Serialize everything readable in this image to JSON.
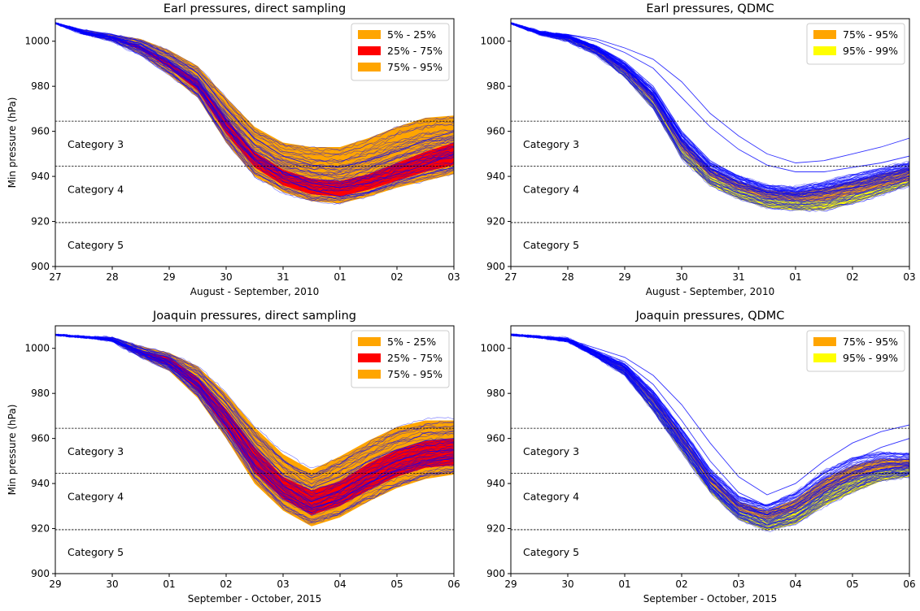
{
  "colors": {
    "sample_line": "#0000ff",
    "band_5_25": "#ffa500",
    "band_25_75": "#ff0000",
    "band_75_95": "#ffa500",
    "band_95_99": "#ffff00",
    "threshold": "#000000"
  },
  "chart_data": [
    {
      "type": "area",
      "title": "Earl pressures, direct sampling",
      "xlabel": "August - September, 2010",
      "ylabel": "Min pressure (hPa)",
      "xlim": [
        0,
        7
      ],
      "ylim": [
        900,
        1010
      ],
      "x_tick_labels": [
        "27",
        "28",
        "29",
        "30",
        "31",
        "01",
        "02",
        "03"
      ],
      "y_ticks": [
        900,
        920,
        940,
        960,
        980,
        1000
      ],
      "grid": false,
      "legend_position": "top-right",
      "legend": [
        {
          "label": "5% - 25%",
          "color": "#ffa500"
        },
        {
          "label": "25% - 75%",
          "color": "#ff0000"
        },
        {
          "label": "75% - 95%",
          "color": "#ffa500"
        }
      ],
      "thresholds": [
        {
          "value": 964.5,
          "label": "Category 3"
        },
        {
          "value": 944.5,
          "label": "Category 4"
        },
        {
          "value": 919.5,
          "label": "Category 5"
        }
      ],
      "x": [
        0,
        0.5,
        1,
        1.5,
        2,
        2.5,
        3,
        3.5,
        4,
        4.5,
        5,
        5.5,
        6,
        6.5,
        7
      ],
      "series": [
        {
          "values": [
            1008,
            1004,
            1002,
            999,
            991,
            982,
            965,
            950,
            942,
            937,
            935,
            937,
            941,
            945,
            950
          ]
        },
        {
          "values": [
            1008,
            1004,
            1002,
            997,
            989,
            980,
            962,
            947,
            939,
            934,
            931,
            933,
            937,
            941,
            944
          ]
        },
        {
          "values": [
            1008,
            1005,
            1003,
            1000,
            994,
            986,
            970,
            957,
            949,
            945,
            944,
            947,
            951,
            956,
            960
          ]
        }
      ],
      "bands": [
        {
          "name": "5% - 25%",
          "lower": [
            1008,
            1003,
            1000,
            994,
            985,
            975,
            955,
            940,
            933,
            929,
            928,
            931,
            935,
            938,
            941
          ],
          "upper": [
            1008,
            1004,
            1001,
            996,
            988,
            978,
            959,
            944,
            936,
            932,
            931,
            934,
            938,
            942,
            945
          ]
        },
        {
          "name": "25% - 75%",
          "lower": [
            1008,
            1004,
            1001,
            996,
            988,
            978,
            959,
            944,
            936,
            932,
            931,
            934,
            938,
            942,
            945
          ],
          "upper": [
            1008,
            1004,
            1002,
            998,
            991,
            983,
            966,
            951,
            943,
            939,
            938,
            941,
            946,
            951,
            955
          ]
        },
        {
          "name": "75% - 95%",
          "lower": [
            1008,
            1004,
            1002,
            998,
            991,
            983,
            966,
            951,
            943,
            939,
            938,
            941,
            946,
            951,
            955
          ],
          "upper": [
            1008,
            1005,
            1003,
            1001,
            996,
            989,
            975,
            962,
            955,
            953,
            953,
            957,
            962,
            966,
            967
          ]
        }
      ]
    },
    {
      "type": "area",
      "title": "Earl pressures, QDMC",
      "xlabel": "August - September, 2010",
      "ylabel": "",
      "xlim": [
        0,
        7
      ],
      "ylim": [
        900,
        1010
      ],
      "x_tick_labels": [
        "27",
        "28",
        "29",
        "30",
        "31",
        "01",
        "02",
        "03"
      ],
      "y_ticks": [
        900,
        920,
        940,
        960,
        980,
        1000
      ],
      "grid": false,
      "legend_position": "top-right",
      "legend": [
        {
          "label": "75% - 95%",
          "color": "#ffa500"
        },
        {
          "label": "95% - 99%",
          "color": "#ffff00"
        }
      ],
      "thresholds": [
        {
          "value": 964.5,
          "label": "Category 3"
        },
        {
          "value": 944.5,
          "label": "Category 4"
        },
        {
          "value": 919.5,
          "label": "Category 5"
        }
      ],
      "x": [
        0,
        0.5,
        1,
        1.5,
        2,
        2.5,
        3,
        3.5,
        4,
        4.5,
        5,
        5.5,
        6,
        6.5,
        7
      ],
      "series": [
        {
          "values": [
            1008,
            1004,
            1003,
            1000,
            995,
            988,
            975,
            962,
            952,
            945,
            942,
            942,
            944,
            946,
            949
          ]
        },
        {
          "values": [
            1008,
            1004,
            1003,
            1001,
            997,
            992,
            982,
            968,
            958,
            950,
            946,
            947,
            950,
            953,
            957
          ]
        },
        {
          "values": [
            1008,
            1004,
            1002,
            998,
            991,
            980,
            960,
            947,
            940,
            935,
            932,
            933,
            935,
            937,
            940
          ]
        }
      ],
      "bands": [
        {
          "name": "95% - 99%",
          "lower": [
            1008,
            1003,
            1000,
            994,
            984,
            970,
            948,
            936,
            930,
            926,
            925,
            925,
            928,
            932,
            936
          ],
          "upper": [
            1008,
            1003,
            1001,
            995,
            986,
            973,
            952,
            940,
            934,
            930,
            929,
            929,
            932,
            935,
            938
          ]
        },
        {
          "name": "75% - 95%",
          "lower": [
            1008,
            1003,
            1001,
            995,
            986,
            973,
            952,
            940,
            934,
            930,
            929,
            929,
            932,
            935,
            938
          ],
          "upper": [
            1008,
            1004,
            1002,
            997,
            989,
            977,
            957,
            944,
            938,
            934,
            933,
            935,
            938,
            941,
            944
          ]
        }
      ]
    },
    {
      "type": "area",
      "title": "Joaquin pressures, direct sampling",
      "xlabel": "September - October, 2015",
      "ylabel": "Min pressure (hPa)",
      "xlim": [
        0,
        7
      ],
      "ylim": [
        900,
        1010
      ],
      "x_tick_labels": [
        "29",
        "30",
        "01",
        "02",
        "03",
        "04",
        "05",
        "06"
      ],
      "y_ticks": [
        900,
        920,
        940,
        960,
        980,
        1000
      ],
      "grid": false,
      "legend_position": "top-right",
      "legend": [
        {
          "label": "5% - 25%",
          "color": "#ffa500"
        },
        {
          "label": "25% - 75%",
          "color": "#ff0000"
        },
        {
          "label": "75% - 95%",
          "color": "#ffa500"
        }
      ],
      "thresholds": [
        {
          "value": 964.5,
          "label": "Category 3"
        },
        {
          "value": 944.5,
          "label": "Category 4"
        },
        {
          "value": 919.5,
          "label": "Category 5"
        }
      ],
      "x": [
        0,
        0.5,
        1,
        1.5,
        2,
        2.5,
        3,
        3.5,
        4,
        4.5,
        5,
        5.5,
        6,
        6.5,
        7
      ],
      "series": [
        {
          "values": [
            1006,
            1005,
            1004,
            998,
            994,
            984,
            970,
            952,
            939,
            932,
            937,
            944,
            950,
            954,
            955
          ]
        },
        {
          "values": [
            1006,
            1005,
            1004,
            997,
            992,
            982,
            966,
            948,
            936,
            929,
            933,
            940,
            946,
            950,
            951
          ]
        },
        {
          "values": [
            1006,
            1005,
            1004,
            999,
            996,
            987,
            974,
            957,
            944,
            938,
            943,
            950,
            955,
            959,
            960
          ]
        }
      ],
      "bands": [
        {
          "name": "5% - 25%",
          "lower": [
            1006,
            1005,
            1003,
            996,
            990,
            978,
            960,
            940,
            928,
            921,
            925,
            932,
            938,
            942,
            944
          ],
          "upper": [
            1006,
            1005,
            1004,
            997,
            992,
            981,
            964,
            945,
            933,
            926,
            930,
            937,
            943,
            947,
            948
          ]
        },
        {
          "name": "25% - 75%",
          "lower": [
            1006,
            1005,
            1004,
            997,
            992,
            981,
            964,
            945,
            933,
            926,
            930,
            937,
            943,
            947,
            948
          ],
          "upper": [
            1006,
            1005,
            1004,
            999,
            996,
            987,
            973,
            956,
            943,
            937,
            941,
            949,
            955,
            959,
            960
          ]
        },
        {
          "name": "75% - 95%",
          "lower": [
            1006,
            1005,
            1004,
            999,
            996,
            987,
            973,
            956,
            943,
            937,
            941,
            949,
            955,
            959,
            960
          ],
          "upper": [
            1006,
            1005,
            1005,
            1001,
            998,
            992,
            980,
            965,
            953,
            946,
            952,
            959,
            965,
            968,
            968
          ]
        }
      ]
    },
    {
      "type": "area",
      "title": "Joaquin pressures, QDMC",
      "xlabel": "September - October, 2015",
      "ylabel": "",
      "xlim": [
        0,
        7
      ],
      "ylim": [
        900,
        1010
      ],
      "x_tick_labels": [
        "29",
        "30",
        "01",
        "02",
        "03",
        "04",
        "05",
        "06"
      ],
      "y_ticks": [
        900,
        920,
        940,
        960,
        980,
        1000
      ],
      "grid": false,
      "legend_position": "top-right",
      "legend": [
        {
          "label": "75% - 95%",
          "color": "#ffa500"
        },
        {
          "label": "95% - 99%",
          "color": "#ffff00"
        }
      ],
      "thresholds": [
        {
          "value": 964.5,
          "label": "Category 3"
        },
        {
          "value": 944.5,
          "label": "Category 4"
        },
        {
          "value": 919.5,
          "label": "Category 5"
        }
      ],
      "x": [
        0,
        0.5,
        1,
        1.5,
        2,
        2.5,
        3,
        3.5,
        4,
        4.5,
        5,
        5.5,
        6,
        6.5,
        7
      ],
      "series": [
        {
          "values": [
            1006,
            1005,
            1004,
            999,
            994,
            984,
            968,
            950,
            936,
            930,
            934,
            942,
            950,
            956,
            960
          ]
        },
        {
          "values": [
            1006,
            1005,
            1004,
            1000,
            996,
            988,
            975,
            958,
            943,
            935,
            940,
            950,
            958,
            963,
            966
          ]
        },
        {
          "values": [
            1006,
            1005,
            1004,
            998,
            992,
            980,
            962,
            944,
            931,
            926,
            929,
            937,
            943,
            946,
            948
          ]
        }
      ],
      "bands": [
        {
          "name": "95% - 99%",
          "lower": [
            1006,
            1005,
            1003,
            996,
            988,
            972,
            954,
            936,
            924,
            919,
            922,
            930,
            936,
            941,
            943
          ],
          "upper": [
            1006,
            1005,
            1003,
            997,
            990,
            976,
            958,
            940,
            928,
            924,
            928,
            936,
            942,
            946,
            947
          ]
        },
        {
          "name": "75% - 95%",
          "lower": [
            1006,
            1005,
            1003,
            997,
            990,
            976,
            958,
            940,
            928,
            924,
            928,
            936,
            942,
            946,
            947
          ],
          "upper": [
            1006,
            1005,
            1004,
            998,
            992,
            979,
            962,
            944,
            932,
            928,
            933,
            942,
            948,
            951,
            951
          ]
        }
      ]
    }
  ]
}
